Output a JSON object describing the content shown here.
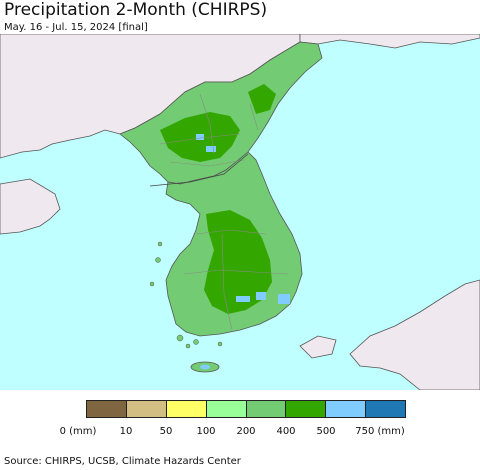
{
  "title": "Precipitation 2-Month (CHIRPS)",
  "subtitle": "May. 16 - Jul. 15, 2024 [final]",
  "legend": {
    "bins": [
      {
        "label": "0 (mm)",
        "color": "#806640"
      },
      {
        "label": "10",
        "color": "#d2be82"
      },
      {
        "label": "50",
        "color": "#ffff66"
      },
      {
        "label": "100",
        "color": "#99ff99"
      },
      {
        "label": "200",
        "color": "#73cc73"
      },
      {
        "label": "400",
        "color": "#33a600"
      },
      {
        "label": "500",
        "color": "#80ccff"
      },
      {
        "label": "750 (mm)",
        "color": "#1f78b4"
      }
    ]
  },
  "map": {
    "sea_color": "#bfffff",
    "land_outside_color": "#efe8ee",
    "korea_base_color": "#73cc73",
    "wet_color": "#33a600",
    "very_wet_color": "#80ccff"
  },
  "source": "Source: CHIRPS, UCSB, Climate Hazards Center"
}
